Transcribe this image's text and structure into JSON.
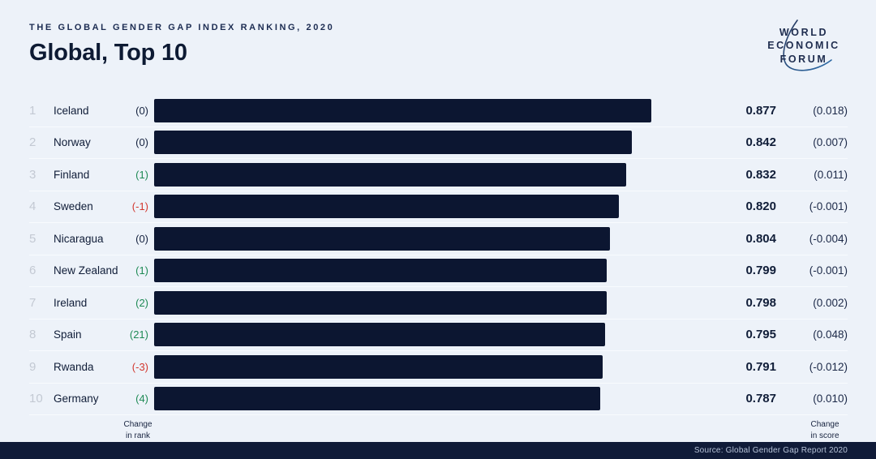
{
  "header": {
    "eyebrow": "THE GLOBAL GENDER GAP INDEX RANKING, 2020",
    "title": "Global, Top 10"
  },
  "logo": {
    "line1": "WORLD",
    "line2": "ECONOMIC",
    "line3": "FORUM"
  },
  "colors": {
    "background": "#edf2f9",
    "bar": "#0c1631",
    "positive": "#1e8a55",
    "negative": "#d2372e",
    "neutral": "#15223f",
    "source_bar": "#101b38"
  },
  "chart_data": {
    "type": "bar",
    "orientation": "horizontal",
    "title": "Global, Top 10",
    "subtitle": "The Global Gender Gap Index Ranking, 2020",
    "xlim": [
      0,
      0.877
    ],
    "value_field": "score",
    "rows": [
      {
        "rank": "1",
        "country": "Iceland",
        "rank_change": "(0)",
        "score": "0.877",
        "score_change": "(0.018)"
      },
      {
        "rank": "2",
        "country": "Norway",
        "rank_change": "(0)",
        "score": "0.842",
        "score_change": "(0.007)"
      },
      {
        "rank": "3",
        "country": "Finland",
        "rank_change": "(1)",
        "score": "0.832",
        "score_change": "(0.011)"
      },
      {
        "rank": "4",
        "country": "Sweden",
        "rank_change": "(-1)",
        "score": "0.820",
        "score_change": "(-0.001)"
      },
      {
        "rank": "5",
        "country": "Nicaragua",
        "rank_change": "(0)",
        "score": "0.804",
        "score_change": "(-0.004)"
      },
      {
        "rank": "6",
        "country": "New Zealand",
        "rank_change": "(1)",
        "score": "0.799",
        "score_change": "(-0.001)"
      },
      {
        "rank": "7",
        "country": "Ireland",
        "rank_change": "(2)",
        "score": "0.798",
        "score_change": "(0.002)"
      },
      {
        "rank": "8",
        "country": "Spain",
        "rank_change": "(21)",
        "score": "0.795",
        "score_change": "(0.048)"
      },
      {
        "rank": "9",
        "country": "Rwanda",
        "rank_change": "(-3)",
        "score": "0.791",
        "score_change": "(-0.012)"
      },
      {
        "rank": "10",
        "country": "Germany",
        "rank_change": "(4)",
        "score": "0.787",
        "score_change": "(0.010)"
      }
    ]
  },
  "footnotes": {
    "rank_line1": "Change",
    "rank_line2": "in rank",
    "score_line1": "Change",
    "score_line2": "in score"
  },
  "source": {
    "text": "Source: Global Gender Gap Report 2020"
  }
}
